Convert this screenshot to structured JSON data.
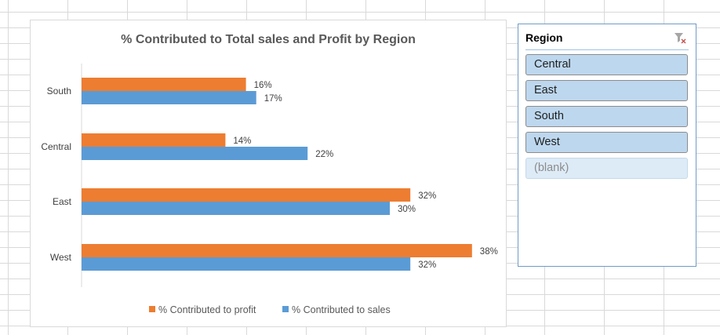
{
  "chart_data": {
    "type": "bar",
    "orientation": "horizontal",
    "title": "% Contributed to Total sales and Profit by Region",
    "categories": [
      "South",
      "Central",
      "East",
      "West"
    ],
    "series": [
      {
        "name": "% Contributed to profit",
        "values": [
          16,
          14,
          32,
          38
        ],
        "labels": [
          "16%",
          "14%",
          "32%",
          "38%"
        ],
        "color": "#ed7d31"
      },
      {
        "name": "% Contributed to sales",
        "values": [
          17,
          22,
          30,
          32
        ],
        "labels": [
          "17%",
          "22%",
          "30%",
          "32%"
        ],
        "color": "#5b9bd5"
      }
    ],
    "xlim": [
      0,
      40
    ],
    "grid": false,
    "legend_position": "bottom"
  },
  "slicer": {
    "title": "Region",
    "items": [
      {
        "label": "Central",
        "selected": true
      },
      {
        "label": "East",
        "selected": true
      },
      {
        "label": "South",
        "selected": true
      },
      {
        "label": "West",
        "selected": true
      },
      {
        "label": "(blank)",
        "selected": false
      }
    ],
    "clear_icon": "clear-filter-icon"
  }
}
